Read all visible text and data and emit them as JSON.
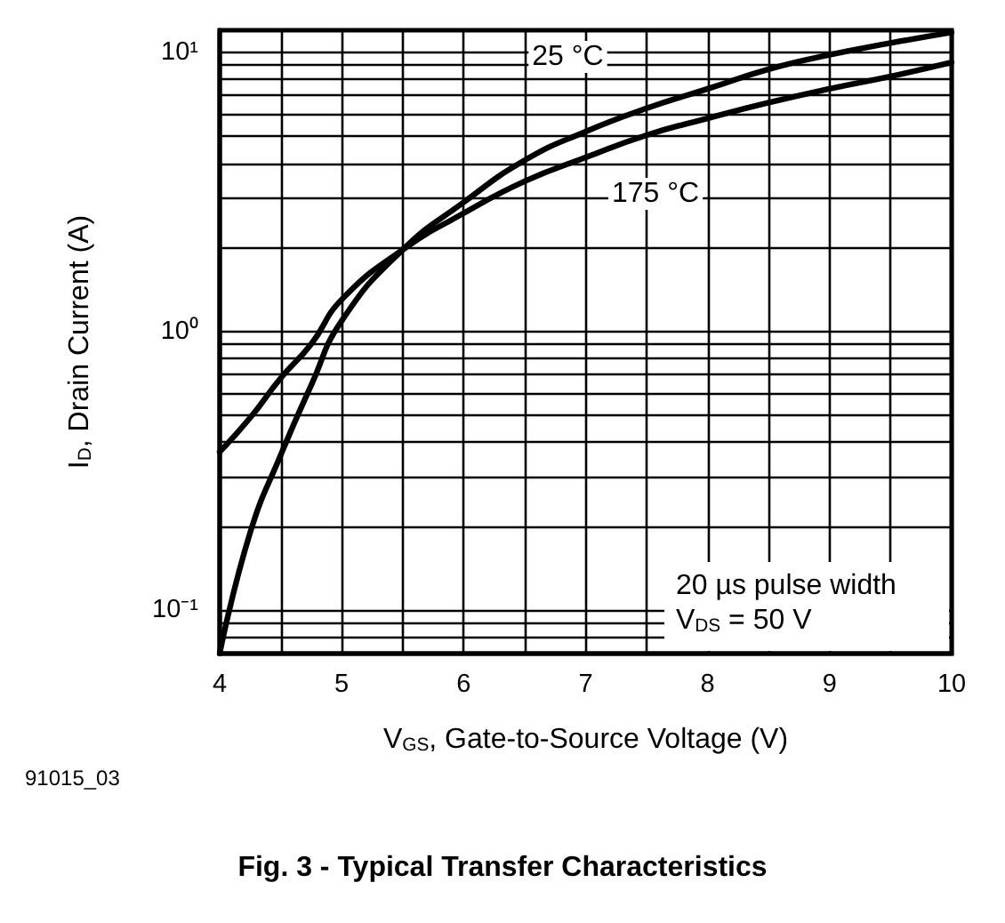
{
  "chart_data": {
    "type": "line",
    "title": "Fig. 3 - Typical Transfer Characteristics",
    "xlabel": "V$_{GS}$, Gate-to-Source Voltage (V)",
    "ylabel": "I$_{D}$, Drain Current (A)",
    "x": [
      4,
      4.25,
      4.5,
      4.75,
      5,
      5.5,
      6,
      6.5,
      7,
      7.5,
      8,
      8.5,
      9,
      9.5,
      10
    ],
    "series": [
      {
        "name": "25 °C",
        "color": "#000000",
        "values": [
          0.07,
          0.19,
          0.36,
          0.64,
          1.09,
          1.96,
          2.9,
          4.1,
          5.2,
          6.3,
          7.4,
          8.7,
          9.8,
          10.8,
          11.8
        ]
      },
      {
        "name": "175 °C",
        "color": "#000000",
        "values": [
          0.37,
          0.49,
          0.68,
          0.9,
          1.3,
          1.96,
          2.65,
          3.45,
          4.2,
          5.05,
          5.8,
          6.6,
          7.4,
          8.2,
          9.2
        ]
      }
    ],
    "xlim": [
      4,
      10
    ],
    "xticks": [
      4,
      {
        "value": 4.5,
        "label": null
      },
      5,
      {
        "value": 5.5,
        "label": null
      },
      6,
      {
        "value": 6.5,
        "label": null
      },
      7,
      {
        "value": 7.5,
        "label": null
      },
      8,
      {
        "value": 8.5,
        "label": null
      },
      9,
      {
        "value": 9.5,
        "label": null
      },
      10
    ],
    "ylim": [
      0.07,
      12
    ],
    "yticks": [
      {
        "value": 0.08,
        "label": null
      },
      {
        "value": 0.09,
        "label": null
      },
      {
        "value": 0.1,
        "label": "10⁻¹"
      },
      {
        "value": 0.2,
        "label": null
      },
      {
        "value": 0.3,
        "label": null
      },
      {
        "value": 0.4,
        "label": null
      },
      {
        "value": 0.5,
        "label": null
      },
      {
        "value": 0.6,
        "label": null
      },
      {
        "value": 0.7,
        "label": null
      },
      {
        "value": 0.8,
        "label": null
      },
      {
        "value": 0.9,
        "label": null
      },
      {
        "value": 1,
        "label": "10⁰"
      },
      {
        "value": 2,
        "label": null
      },
      {
        "value": 3,
        "label": null
      },
      {
        "value": 4,
        "label": null
      },
      {
        "value": 5,
        "label": null
      },
      {
        "value": 6,
        "label": null
      },
      {
        "value": 7,
        "label": null
      },
      {
        "value": 8,
        "label": null
      },
      {
        "value": 9,
        "label": null
      },
      {
        "value": 10,
        "label": "10¹"
      }
    ],
    "log": "y",
    "grid": true,
    "marker": "none",
    "line_style": "solid",
    "annotations": [
      "20 µs pulse width",
      "V$_{DS}$ = 50 V",
      "91015_03"
    ]
  }
}
